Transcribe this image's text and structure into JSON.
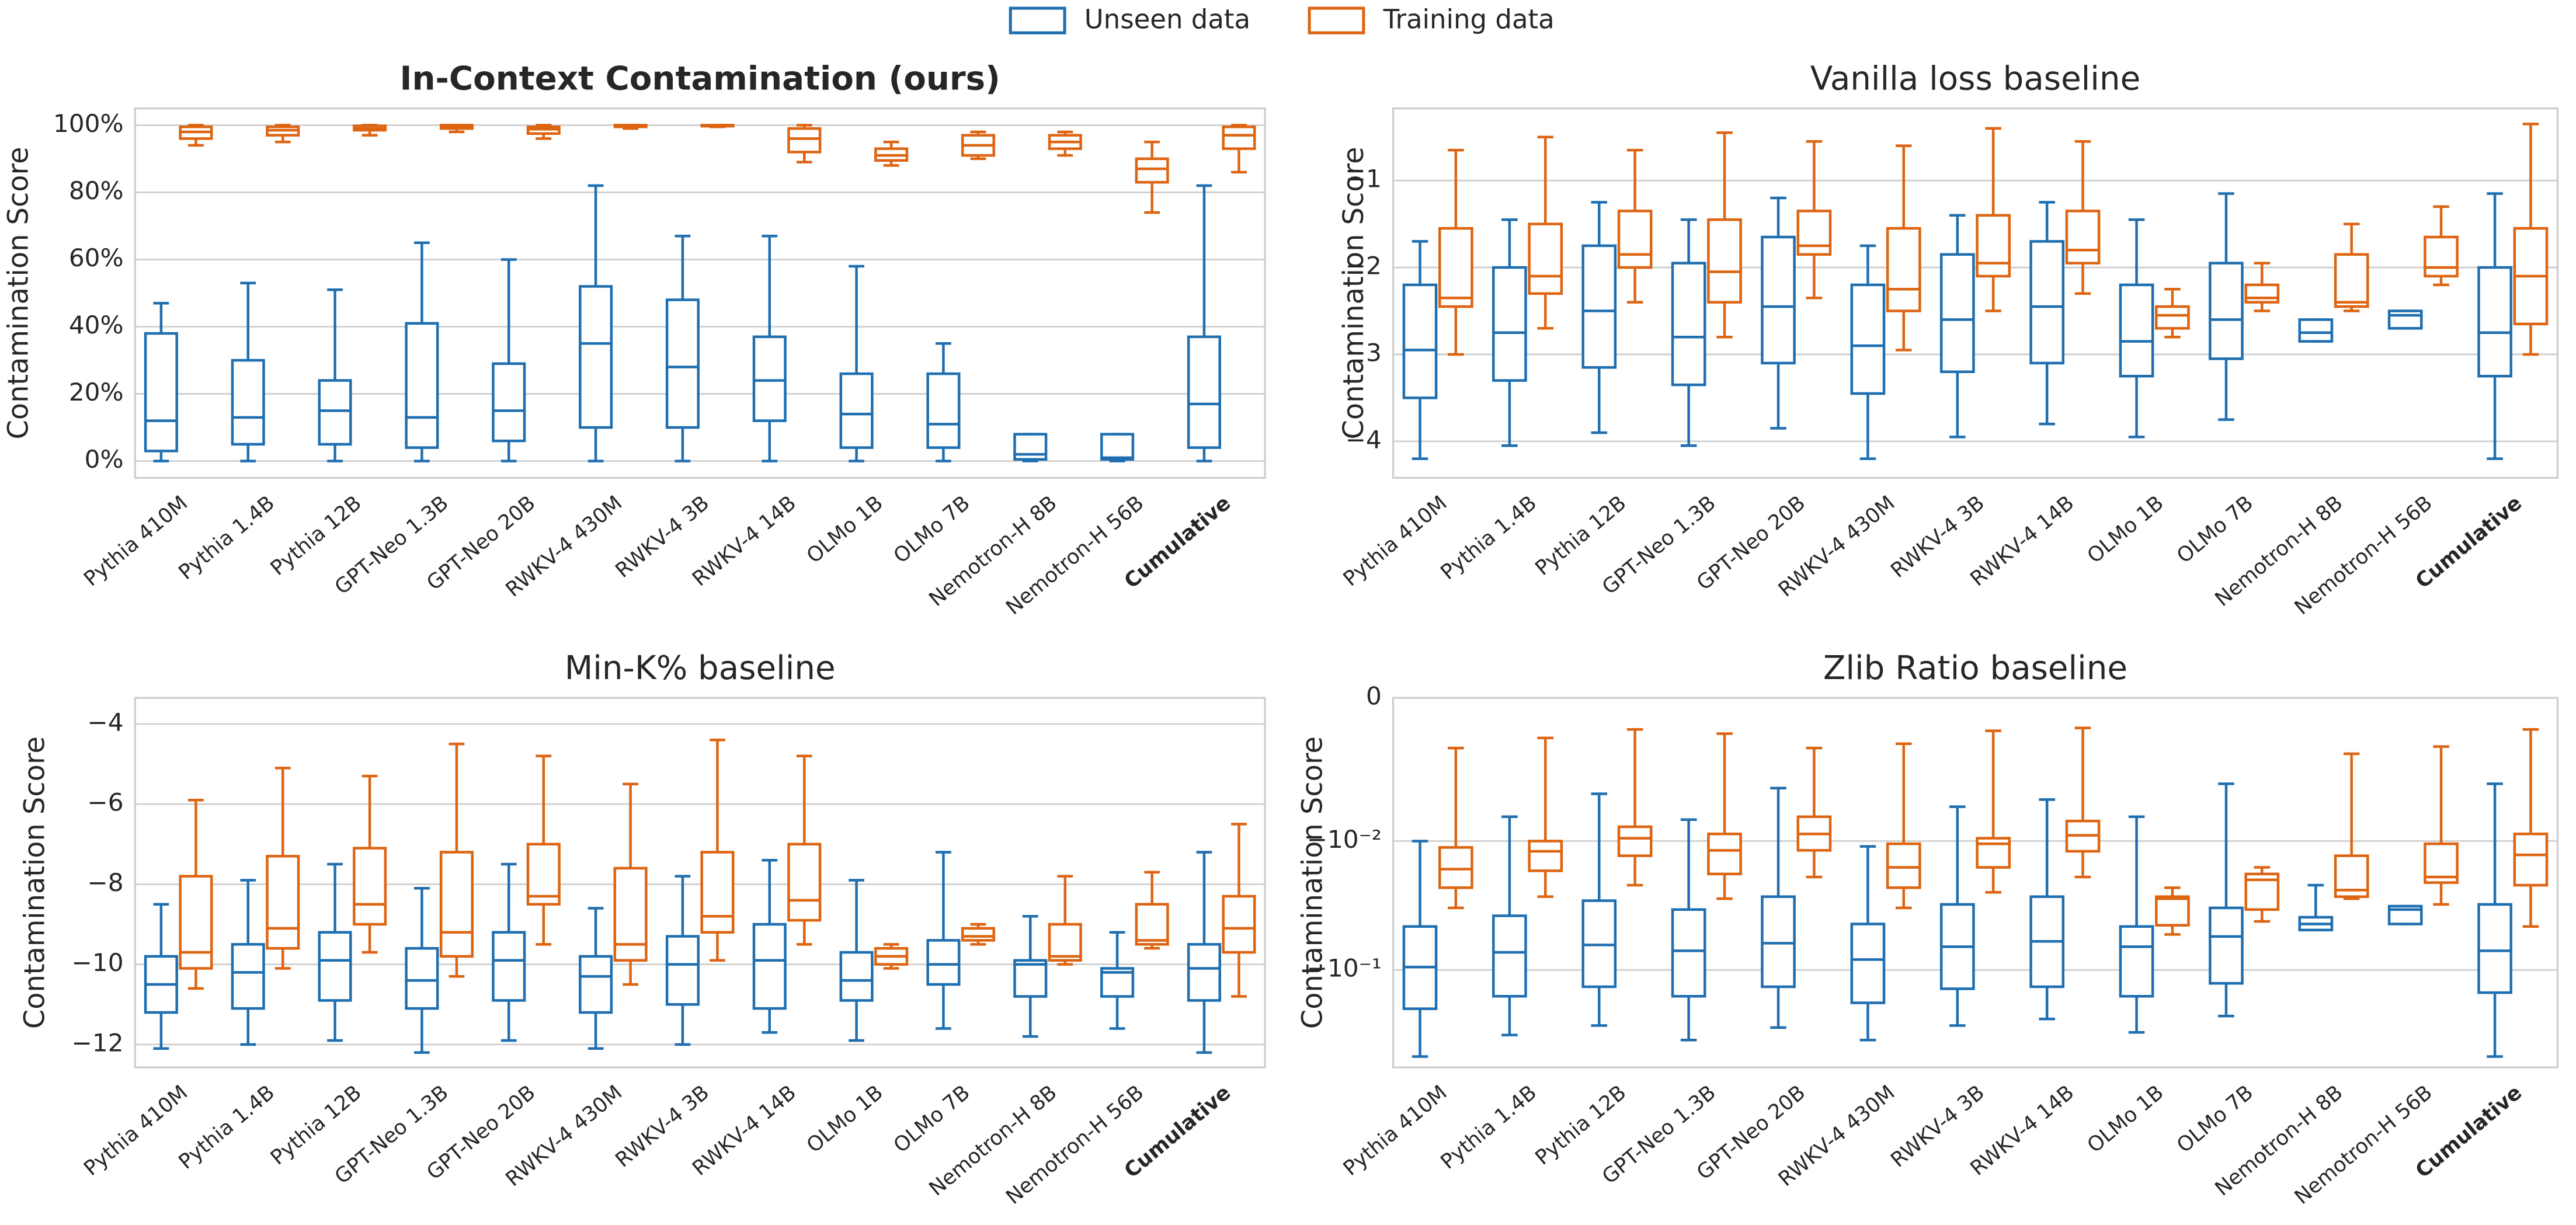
{
  "legend": [
    {
      "name": "Unseen data",
      "color": "#1f6fb0"
    },
    {
      "name": "Training data",
      "color": "#dd6512"
    }
  ],
  "chart_data": [
    {
      "type": "box",
      "title": "In-Context Contamination (ours)",
      "ylabel": "Contamination Score",
      "categories": [
        "Pythia 410M",
        "Pythia 1.4B",
        "Pythia 12B",
        "GPT-Neo 1.3B",
        "GPT-Neo 20B",
        "RWKV-4 430M",
        "RWKV-4 3B",
        "RWKV-4 14B",
        "OLMo 1B",
        "OLMo 7B",
        "Nemotron-H 8B",
        "Nemotron-H 56B",
        "Cumulative"
      ],
      "ylim": [
        -5,
        105
      ],
      "yticks": [
        {
          "value": 0,
          "label": "0%"
        },
        {
          "value": 20,
          "label": "20%"
        },
        {
          "value": 40,
          "label": "40%"
        },
        {
          "value": 60,
          "label": "60%"
        },
        {
          "value": 80,
          "label": "80%"
        },
        {
          "value": 100,
          "label": "100%"
        }
      ],
      "grid": true,
      "series": [
        {
          "min": [
            0,
            0,
            0,
            0,
            0,
            0,
            0,
            0,
            0,
            0,
            0,
            0,
            0
          ],
          "q1": [
            3,
            5,
            5,
            4,
            6,
            10,
            10,
            12,
            4,
            4,
            0.5,
            0.5,
            4
          ],
          "median": [
            12,
            13,
            15,
            13,
            15,
            35,
            28,
            24,
            14,
            11,
            2,
            1,
            17
          ],
          "q3": [
            38,
            30,
            24,
            41,
            29,
            52,
            48,
            37,
            26,
            26,
            8,
            8,
            37
          ],
          "max": [
            47,
            53,
            51,
            65,
            60,
            82,
            67,
            67,
            58,
            35,
            8,
            8,
            82
          ]
        },
        {
          "min": [
            94,
            95,
            97,
            98,
            96,
            99,
            99.5,
            89,
            88,
            90,
            91,
            74,
            86
          ],
          "q1": [
            96,
            97,
            98.5,
            99,
            97.5,
            99.5,
            99.7,
            92,
            89.5,
            91,
            93,
            83,
            93
          ],
          "median": [
            98,
            98.5,
            99,
            99.5,
            98.8,
            99.8,
            99.9,
            96,
            91,
            94,
            95,
            87,
            97
          ],
          "q3": [
            99.5,
            99.5,
            99.8,
            100,
            99.5,
            100,
            100,
            99,
            93,
            97,
            97,
            90,
            99.5
          ],
          "max": [
            100,
            100,
            100,
            100,
            100,
            100,
            100,
            100,
            95,
            98,
            98,
            95,
            100
          ]
        }
      ]
    },
    {
      "type": "box",
      "title": "Vanilla loss baseline",
      "ylabel": "Contamination Score",
      "categories": [
        "Pythia 410M",
        "Pythia 1.4B",
        "Pythia 12B",
        "GPT-Neo 1.3B",
        "GPT-Neo 20B",
        "RWKV-4 430M",
        "RWKV-4 3B",
        "RWKV-4 14B",
        "OLMo 1B",
        "OLMo 7B",
        "Nemotron-H 8B",
        "Nemotron-H 56B",
        "Cumulative"
      ],
      "ylim": [
        -4.42,
        -0.17
      ],
      "yticks": [
        {
          "value": -4,
          "label": "−4"
        },
        {
          "value": -3,
          "label": "−3"
        },
        {
          "value": -2,
          "label": "−2"
        },
        {
          "value": -1,
          "label": "−1"
        }
      ],
      "grid": true,
      "series": [
        {
          "min": [
            -4.2,
            -4.05,
            -3.9,
            -4.05,
            -3.85,
            -4.2,
            -3.95,
            -3.8,
            -3.95,
            -3.75,
            -2.85,
            -2.7,
            -4.2
          ],
          "q1": [
            -3.5,
            -3.3,
            -3.15,
            -3.35,
            -3.1,
            -3.45,
            -3.2,
            -3.1,
            -3.25,
            -3.05,
            -2.85,
            -2.7,
            -3.25
          ],
          "median": [
            -2.95,
            -2.75,
            -2.5,
            -2.8,
            -2.45,
            -2.9,
            -2.6,
            -2.45,
            -2.85,
            -2.6,
            -2.75,
            -2.55,
            -2.75
          ],
          "q3": [
            -2.2,
            -2.0,
            -1.75,
            -1.95,
            -1.65,
            -2.2,
            -1.85,
            -1.7,
            -2.2,
            -1.95,
            -2.6,
            -2.5,
            -2.0
          ],
          "max": [
            -1.7,
            -1.45,
            -1.25,
            -1.45,
            -1.2,
            -1.75,
            -1.4,
            -1.25,
            -1.45,
            -1.15,
            -2.6,
            -2.5,
            -1.15
          ]
        },
        {
          "min": [
            -3.0,
            -2.7,
            -2.4,
            -2.8,
            -2.35,
            -2.95,
            -2.5,
            -2.3,
            -2.8,
            -2.5,
            -2.5,
            -2.2,
            -3.0
          ],
          "q1": [
            -2.45,
            -2.3,
            -2.0,
            -2.4,
            -1.85,
            -2.5,
            -2.1,
            -1.95,
            -2.7,
            -2.4,
            -2.45,
            -2.1,
            -2.65
          ],
          "median": [
            -2.35,
            -2.1,
            -1.85,
            -2.05,
            -1.75,
            -2.25,
            -1.95,
            -1.8,
            -2.55,
            -2.35,
            -2.4,
            -2.0,
            -2.1
          ],
          "q3": [
            -1.55,
            -1.5,
            -1.35,
            -1.45,
            -1.35,
            -1.55,
            -1.4,
            -1.35,
            -2.45,
            -2.2,
            -1.85,
            -1.65,
            -1.55
          ],
          "max": [
            -0.65,
            -0.5,
            -0.65,
            -0.45,
            -0.55,
            -0.6,
            -0.4,
            -0.55,
            -2.25,
            -1.95,
            -1.5,
            -1.3,
            -0.35
          ]
        }
      ]
    },
    {
      "type": "box",
      "title": "Min-K% baseline",
      "ylabel": "Contamination Score",
      "categories": [
        "Pythia 410M",
        "Pythia 1.4B",
        "Pythia 12B",
        "GPT-Neo 1.3B",
        "GPT-Neo 20B",
        "RWKV-4 430M",
        "RWKV-4 3B",
        "RWKV-4 14B",
        "OLMo 1B",
        "OLMo 7B",
        "Nemotron-H 8B",
        "Nemotron-H 56B",
        "Cumulative"
      ],
      "ylim": [
        -12.57,
        -3.35
      ],
      "yticks": [
        {
          "value": -12,
          "label": "−12"
        },
        {
          "value": -10,
          "label": "−10"
        },
        {
          "value": -8,
          "label": "−8"
        },
        {
          "value": -6,
          "label": "−6"
        },
        {
          "value": -4,
          "label": "−4"
        }
      ],
      "grid": true,
      "series": [
        {
          "min": [
            -12.1,
            -12.0,
            -11.9,
            -12.2,
            -11.9,
            -12.1,
            -12.0,
            -11.7,
            -11.9,
            -11.6,
            -11.8,
            -11.6,
            -12.2
          ],
          "q1": [
            -11.2,
            -11.1,
            -10.9,
            -11.1,
            -10.9,
            -11.2,
            -11.0,
            -11.1,
            -10.9,
            -10.5,
            -10.8,
            -10.8,
            -10.9
          ],
          "median": [
            -10.5,
            -10.2,
            -9.9,
            -10.4,
            -9.9,
            -10.3,
            -10.0,
            -9.9,
            -10.4,
            -10.0,
            -10.0,
            -10.2,
            -10.1
          ],
          "q3": [
            -9.8,
            -9.5,
            -9.2,
            -9.6,
            -9.2,
            -9.8,
            -9.3,
            -9.0,
            -9.7,
            -9.4,
            -9.9,
            -10.1,
            -9.5
          ],
          "max": [
            -8.5,
            -7.9,
            -7.5,
            -8.1,
            -7.5,
            -8.6,
            -7.8,
            -7.4,
            -7.9,
            -7.2,
            -8.8,
            -9.2,
            -7.2
          ]
        },
        {
          "min": [
            -10.6,
            -10.1,
            -9.7,
            -10.3,
            -9.5,
            -10.5,
            -9.9,
            -9.5,
            -10.1,
            -9.5,
            -10.0,
            -9.6,
            -10.8
          ],
          "q1": [
            -10.1,
            -9.6,
            -9.0,
            -9.8,
            -8.5,
            -9.9,
            -9.2,
            -8.9,
            -10.0,
            -9.4,
            -9.9,
            -9.5,
            -9.7
          ],
          "median": [
            -9.7,
            -9.1,
            -8.5,
            -9.2,
            -8.3,
            -9.5,
            -8.8,
            -8.4,
            -9.8,
            -9.3,
            -9.8,
            -9.4,
            -9.1
          ],
          "q3": [
            -7.8,
            -7.3,
            -7.1,
            -7.2,
            -7.0,
            -7.6,
            -7.2,
            -7.0,
            -9.6,
            -9.1,
            -9.0,
            -8.5,
            -8.3
          ],
          "max": [
            -5.9,
            -5.1,
            -5.3,
            -4.5,
            -4.8,
            -5.5,
            -4.4,
            -4.8,
            -9.5,
            -9.0,
            -7.8,
            -7.7,
            -6.5
          ]
        }
      ]
    },
    {
      "type": "box",
      "title": "Zlib Ratio baseline",
      "ylabel": "Contamination Score",
      "categories": [
        "Pythia 410M",
        "Pythia 1.4B",
        "Pythia 12B",
        "GPT-Neo 1.3B",
        "GPT-Neo 20B",
        "RWKV-4 430M",
        "RWKV-4 3B",
        "RWKV-4 14B",
        "OLMo 1B",
        "OLMo 7B",
        "Nemotron-H 8B",
        "Nemotron-H 56B",
        "Cumulative"
      ],
      "yscale": "symlog",
      "linthresh": 0.01,
      "ylim": [
        -0.57,
        0
      ],
      "yticks": [
        {
          "value": -0.1,
          "label": "−10⁻¹"
        },
        {
          "value": -0.01,
          "label": "−10⁻²"
        },
        0
      ],
      "grid": true,
      "series": [
        {
          "min": [
            -0.47,
            -0.32,
            -0.27,
            -0.35,
            -0.28,
            -0.35,
            -0.27,
            -0.24,
            -0.305,
            -0.228,
            -0.049,
            -0.044,
            -0.47
          ],
          "q1": [
            -0.2,
            -0.16,
            -0.135,
            -0.16,
            -0.135,
            -0.18,
            -0.14,
            -0.135,
            -0.16,
            -0.127,
            -0.049,
            -0.044,
            -0.15
          ],
          "median": [
            -0.095,
            -0.073,
            -0.064,
            -0.071,
            -0.062,
            -0.083,
            -0.066,
            -0.06,
            -0.066,
            -0.055,
            -0.044,
            -0.034,
            -0.071
          ],
          "q3": [
            -0.046,
            -0.038,
            -0.029,
            -0.034,
            -0.027,
            -0.044,
            -0.031,
            -0.027,
            -0.046,
            -0.033,
            -0.039,
            -0.032,
            -0.031
          ],
          "max": [
            -0.01,
            -0.0083,
            -0.0067,
            -0.0085,
            -0.0063,
            -0.011,
            -0.0076,
            -0.0071,
            -0.0083,
            -0.006,
            -0.022,
            -0.032,
            -0.006
          ]
        },
        {
          "min": [
            -0.033,
            -0.027,
            -0.022,
            -0.028,
            -0.019,
            -0.033,
            -0.025,
            -0.019,
            -0.053,
            -0.042,
            -0.028,
            -0.031,
            -0.046
          ],
          "q1": [
            -0.023,
            -0.017,
            -0.013,
            -0.018,
            -0.0118,
            -0.023,
            -0.016,
            -0.012,
            -0.045,
            -0.034,
            -0.027,
            -0.021,
            -0.022
          ],
          "median": [
            -0.0165,
            -0.012,
            -0.0098,
            -0.0118,
            -0.0095,
            -0.016,
            -0.0105,
            -0.0096,
            -0.028,
            -0.02,
            -0.024,
            -0.019,
            -0.0128
          ],
          "q3": [
            -0.0112,
            -0.01,
            -0.009,
            -0.0095,
            -0.0083,
            -0.0105,
            -0.0098,
            -0.0086,
            -0.027,
            -0.018,
            -0.013,
            -0.0105,
            -0.0095
          ],
          "max": [
            -0.0035,
            -0.0028,
            -0.0022,
            -0.0025,
            -0.0035,
            -0.0032,
            -0.0023,
            -0.0021,
            -0.023,
            -0.016,
            -0.0039,
            -0.0034,
            -0.0022
          ]
        }
      ]
    }
  ]
}
